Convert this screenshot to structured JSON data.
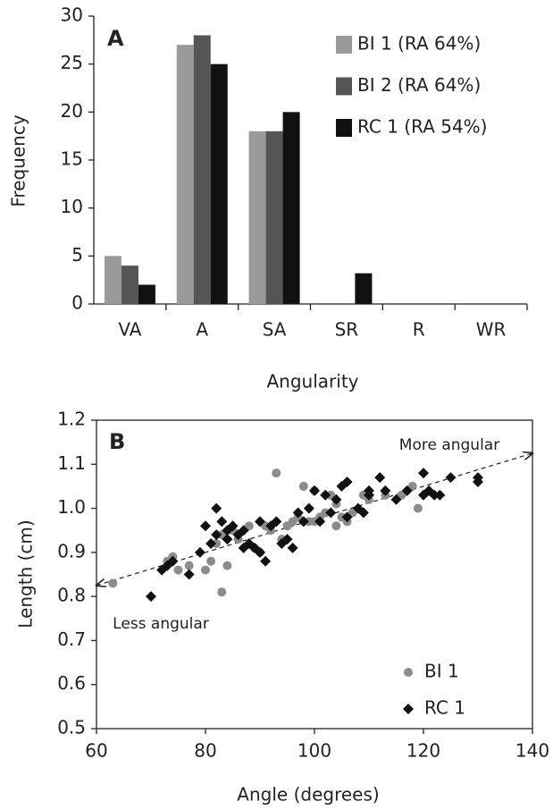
{
  "chart_data": [
    {
      "type": "bar",
      "panel_label": "A",
      "xlabel": "Angularity",
      "ylabel": "Frequency",
      "categories": [
        "VA",
        "A",
        "SA",
        "SR",
        "R",
        "WR"
      ],
      "series": [
        {
          "name": "BI 1 (RA 64%)",
          "color": "#9a9a9a",
          "values": [
            5,
            27,
            18,
            0,
            0,
            0
          ]
        },
        {
          "name": "BI 2 (RA 64%)",
          "color": "#555555",
          "values": [
            4,
            28,
            18,
            0,
            0,
            0
          ]
        },
        {
          "name": "RC 1 (RA 54%)",
          "color": "#111111",
          "values": [
            2,
            25,
            20,
            3.2,
            0,
            0
          ]
        }
      ],
      "ylim": [
        0,
        30
      ],
      "yticks": [
        0,
        5,
        10,
        15,
        20,
        25,
        30
      ],
      "grid": false
    },
    {
      "type": "scatter",
      "panel_label": "B",
      "xlabel": "Angle (degrees)",
      "ylabel": "Length (cm)",
      "xlim": [
        60,
        140
      ],
      "xticks": [
        60,
        80,
        100,
        120,
        140
      ],
      "ylim": [
        0.5,
        1.2
      ],
      "yticks": [
        0.5,
        0.6,
        0.7,
        0.8,
        0.9,
        {
          "value": 1,
          "label": "1.0"
        },
        1.1,
        1.2
      ],
      "annotations": [
        "More angular",
        "Less angular"
      ],
      "arrow": {
        "x": [
          60,
          140
        ],
        "y": [
          0.825,
          1.125
        ]
      },
      "series": [
        {
          "name": "BI 1",
          "color": "#8c8c8c",
          "marker": "circle",
          "x": [
            63,
            73,
            74,
            75,
            77,
            80,
            81,
            82,
            83,
            84,
            83,
            85,
            86,
            88,
            89,
            90,
            91,
            92,
            93,
            94,
            95,
            96,
            97,
            98,
            99,
            100,
            100,
            101,
            102,
            103,
            104,
            104,
            105,
            106,
            107,
            109,
            110,
            113,
            116,
            118,
            119
          ],
          "y": [
            0.83,
            0.88,
            0.89,
            0.86,
            0.87,
            0.86,
            0.88,
            0.92,
            0.81,
            0.87,
            0.94,
            0.95,
            0.93,
            0.96,
            0.91,
            0.9,
            0.96,
            0.95,
            1.08,
            0.93,
            0.96,
            0.97,
            0.98,
            1.05,
            0.97,
            0.97,
            1.04,
            0.98,
            0.99,
            1.03,
            1.01,
            0.96,
            0.98,
            0.97,
            0.99,
            1.03,
            1.02,
            1.03,
            1.03,
            1.05,
            1.0
          ]
        },
        {
          "name": "RC 1",
          "color": "#111111",
          "marker": "diamond",
          "x": [
            70,
            72,
            73,
            74,
            77,
            79,
            80,
            81,
            82,
            82,
            83,
            84,
            84,
            85,
            86,
            87,
            87,
            88,
            89,
            90,
            90,
            91,
            92,
            93,
            94,
            95,
            96,
            97,
            98,
            99,
            100,
            101,
            102,
            103,
            104,
            105,
            106,
            106,
            108,
            109,
            110,
            110,
            112,
            113,
            115,
            117,
            120,
            120,
            121,
            122,
            123,
            125,
            130,
            130
          ],
          "y": [
            0.8,
            0.86,
            0.87,
            0.88,
            0.85,
            0.9,
            0.96,
            0.92,
            0.94,
            1.0,
            0.97,
            0.95,
            0.93,
            0.96,
            0.94,
            0.95,
            0.91,
            0.92,
            0.91,
            0.97,
            0.9,
            0.88,
            0.96,
            0.97,
            0.92,
            0.93,
            0.91,
            0.99,
            0.97,
            1.0,
            1.04,
            0.97,
            1.03,
            0.99,
            1.02,
            1.05,
            1.06,
            0.98,
            1.0,
            0.99,
            1.04,
            1.03,
            1.07,
            1.04,
            1.02,
            1.04,
            1.08,
            1.03,
            1.04,
            1.03,
            1.03,
            1.07,
            1.07,
            1.06
          ]
        }
      ]
    }
  ]
}
